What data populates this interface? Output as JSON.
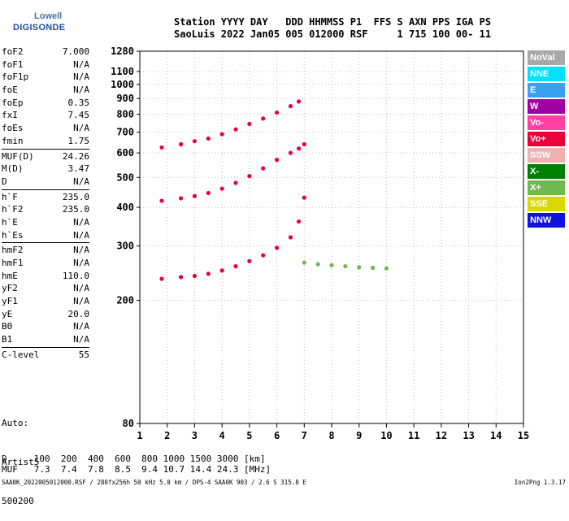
{
  "logo": {
    "top": "Lowell",
    "main": "DIGISONDE"
  },
  "header": {
    "line1": "Station YYYY DAY   DDD HHMMSS P1  FFS S AXN PPS IGA PS",
    "line2": "SaoLuis 2022 Jan05 005 012000 RSF     1 715 100 00- 11"
  },
  "params": [
    {
      "name": "foF2",
      "value": "7.000"
    },
    {
      "name": "foF1",
      "value": "N/A"
    },
    {
      "name": "foF1p",
      "value": "N/A"
    },
    {
      "name": "foE",
      "value": "N/A"
    },
    {
      "name": "foEp",
      "value": "0.35"
    },
    {
      "name": "fxI",
      "value": "7.45"
    },
    {
      "name": "foEs",
      "value": "N/A"
    },
    {
      "name": "fmin",
      "value": "1.75"
    },
    {
      "name": "MUF(D)",
      "value": "24.26",
      "sep": true
    },
    {
      "name": "M(D)",
      "value": "3.47"
    },
    {
      "name": "D",
      "value": "N/A"
    },
    {
      "name": "h`F",
      "value": "235.0",
      "sep": true
    },
    {
      "name": "h`F2",
      "value": "235.0"
    },
    {
      "name": "h`E",
      "value": "N/A"
    },
    {
      "name": "h`Es",
      "value": "N/A"
    },
    {
      "name": "hmF2",
      "value": "N/A",
      "sep": true
    },
    {
      "name": "hmF1",
      "value": "N/A"
    },
    {
      "name": "hmE",
      "value": "110.0"
    },
    {
      "name": "yF2",
      "value": "N/A"
    },
    {
      "name": "yF1",
      "value": "N/A"
    },
    {
      "name": "yE",
      "value": "20.0"
    },
    {
      "name": "B0",
      "value": "N/A"
    },
    {
      "name": "B1",
      "value": "N/A"
    },
    {
      "name": "C-level",
      "value": "55",
      "sep": true
    }
  ],
  "auto": {
    "line1": "Auto:",
    "line2": "Artist5",
    "line3": "500200"
  },
  "muf_table": {
    "d_row": "D     100  200  400  600  800 1000 1500 3000 [km]",
    "muf_row": "MUF   7.3  7.4  7.8  8.5  9.4 10.7 14.4 24.3 [MHz]"
  },
  "footer": {
    "left": "SAA0K_2022005012000.RSF / 280fx256h 50 kHz 5.0 km / DPS-4 SAA0K 903 / 2.6 S 315.8 E",
    "right": "Ion2Png 1.3.17"
  },
  "legend": [
    {
      "label": "NoVal",
      "color": "#a8a8a8"
    },
    {
      "label": "NNE",
      "color": "#00e0ff"
    },
    {
      "label": "E",
      "color": "#3aa0f0"
    },
    {
      "label": "W",
      "color": "#a000a0"
    },
    {
      "label": "Vo-",
      "color": "#ff40a0"
    },
    {
      "label": "Vo+",
      "color": "#e8003a"
    },
    {
      "label": "SSW",
      "color": "#f0b0b0"
    },
    {
      "label": "X-",
      "color": "#008000"
    },
    {
      "label": "X+",
      "color": "#70b850"
    },
    {
      "label": "SSE",
      "color": "#d8d800"
    },
    {
      "label": "NNW",
      "color": "#1010e0"
    }
  ],
  "chart_data": {
    "type": "scatter",
    "title": "",
    "xlabel": "",
    "ylabel": "",
    "xlim": [
      1,
      15
    ],
    "x_ticks": [
      1,
      2,
      3,
      4,
      5,
      6,
      7,
      8,
      9,
      10,
      11,
      12,
      13,
      14,
      15
    ],
    "x_tick_labels": [
      "1",
      "2",
      "3",
      "4",
      "5",
      "6",
      "7",
      "8",
      "9",
      "10",
      "11",
      "12",
      "13",
      "14",
      "15"
    ],
    "ylim": [
      80,
      1280
    ],
    "y_ticks": [
      80,
      200,
      300,
      400,
      500,
      600,
      700,
      800,
      900,
      1000,
      1100,
      1280
    ],
    "y_tick_labels": [
      "80",
      "200",
      "300",
      "400",
      "500",
      "600",
      "700",
      "800",
      "900",
      "1000",
      "1100",
      "1280"
    ],
    "y_scale": "log",
    "series": [
      {
        "name": "Vo+",
        "color": "#e8003a",
        "x": [
          1.8,
          2.5,
          3.0,
          3.5,
          4.0,
          4.5,
          5.0,
          5.5,
          6.0,
          6.5,
          6.8,
          7.0
        ],
        "y": [
          235,
          238,
          240,
          244,
          250,
          258,
          268,
          280,
          296,
          320,
          360,
          430
        ]
      },
      {
        "name": "Vo+",
        "color": "#e8003a",
        "x": [
          1.8,
          2.5,
          3.0,
          3.5,
          4.0,
          4.5,
          5.0,
          5.5,
          6.0,
          6.5,
          6.8,
          7.0
        ],
        "y": [
          420,
          428,
          435,
          445,
          460,
          480,
          505,
          535,
          570,
          600,
          620,
          640
        ]
      },
      {
        "name": "Vo+",
        "color": "#e8003a",
        "x": [
          1.8,
          2.5,
          3.0,
          3.5,
          4.0,
          4.5,
          5.0,
          5.5,
          6.0,
          6.5,
          6.8
        ],
        "y": [
          625,
          640,
          655,
          668,
          690,
          715,
          745,
          775,
          810,
          850,
          880
        ]
      },
      {
        "name": "X+",
        "color": "#70b850",
        "x": [
          7.0,
          7.5,
          8.0,
          8.5,
          9.0,
          9.5,
          10.0
        ],
        "y": [
          265,
          262,
          260,
          258,
          256,
          255,
          254
        ]
      }
    ]
  }
}
